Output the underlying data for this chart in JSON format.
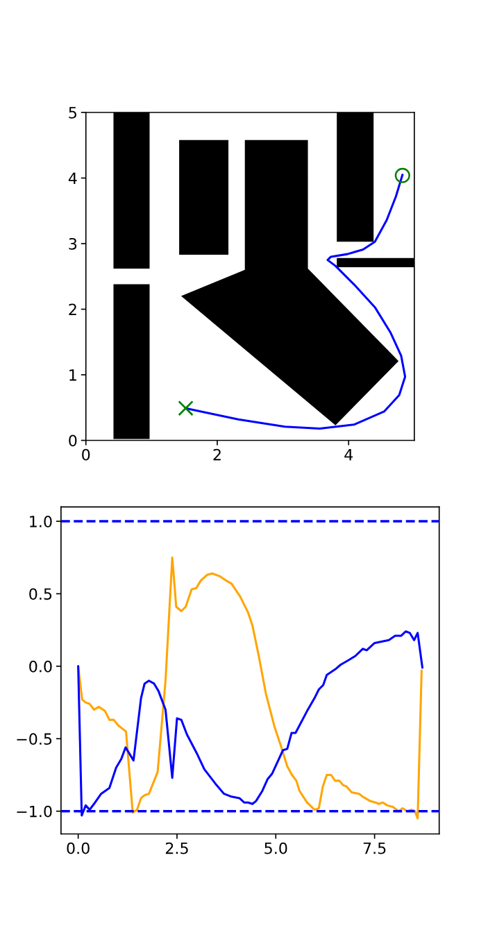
{
  "chart_data": [
    {
      "type": "line",
      "xlim": [
        0,
        5
      ],
      "ylim": [
        0,
        5
      ],
      "xticks": [
        0,
        2,
        4
      ],
      "yticks": [
        0,
        1,
        2,
        3,
        4,
        5
      ],
      "series": [
        {
          "type": "area",
          "color": "#000000",
          "x": [
            0.42,
            0.97,
            0.97,
            0.42,
            null,
            0.42,
            0.97,
            0.97,
            0.42
          ],
          "values": [
            2.62,
            2.62,
            5,
            5,
            null,
            2.38,
            2.38,
            0.02,
            0.02
          ]
        },
        {
          "type": "area",
          "color": "#000000",
          "x": [
            1.42,
            2.17,
            2.17,
            1.42
          ],
          "values": [
            2.83,
            2.83,
            4.58,
            4.58
          ]
        },
        {
          "type": "area",
          "color": "#000000",
          "x": [
            1.45,
            2.42,
            2.42,
            3.38,
            3.38,
            4.76,
            3.8
          ],
          "values": [
            2.2,
            2.6,
            4.58,
            4.58,
            2.62,
            1.21,
            0.23
          ]
        },
        {
          "type": "area",
          "color": "#000000",
          "x": [
            3.82,
            4.38,
            4.38,
            3.82
          ],
          "values": [
            3.03,
            3.03,
            5,
            5
          ]
        },
        {
          "type": "area",
          "color": "#000000",
          "x": [
            3.82,
            5.0,
            5.0,
            3.82
          ],
          "values": [
            2.64,
            2.64,
            2.78,
            2.78
          ]
        },
        {
          "type": "line",
          "color": "#0000ff",
          "x": [
            1.52,
            2.32,
            3.03,
            3.56,
            4.08,
            4.54,
            4.77,
            4.86,
            4.8,
            4.64,
            4.4,
            4.08,
            3.8,
            3.68,
            3.73,
            3.98,
            4.22,
            4.4,
            4.58,
            4.72,
            4.82
          ],
          "values": [
            0.49,
            0.32,
            0.21,
            0.18,
            0.24,
            0.44,
            0.69,
            0.97,
            1.29,
            1.64,
            2.03,
            2.38,
            2.66,
            2.75,
            2.8,
            2.84,
            2.91,
            3.03,
            3.36,
            3.72,
            4.05
          ]
        },
        {
          "type": "scatter",
          "color": "#008000",
          "marker": "cross",
          "x": [
            1.52
          ],
          "values": [
            0.49
          ]
        },
        {
          "type": "scatter",
          "color": "#008000",
          "marker": "circle",
          "x": [
            4.82
          ],
          "values": [
            4.04
          ]
        }
      ]
    },
    {
      "type": "line",
      "xlim": [
        -0.435,
        9.135
      ],
      "ylim": [
        -1.157,
        1.099
      ],
      "xticks": [
        {
          "value": 0,
          "label": "0.0"
        },
        {
          "value": 2.5,
          "label": "2.5"
        },
        {
          "value": 5,
          "label": "5.0"
        },
        {
          "value": 7.5,
          "label": "7.5"
        }
      ],
      "yticks": [
        {
          "value": -1,
          "label": "−1.0"
        },
        {
          "value": -0.5,
          "label": "−0.5"
        },
        {
          "value": 0,
          "label": "0.0"
        },
        {
          "value": 0.5,
          "label": "0.5"
        },
        {
          "value": 1,
          "label": "1.0"
        }
      ],
      "ref_lines": [
        {
          "axis": "y",
          "value": 1,
          "color": "#0000ff",
          "line_style": "dashed"
        },
        {
          "axis": "y",
          "value": -1,
          "color": "#0000ff",
          "line_style": "dashed"
        }
      ],
      "series": [
        {
          "color": "#ffa500",
          "x": [
            0,
            0.1,
            0.19,
            0.29,
            0.4,
            0.52,
            0.68,
            0.79,
            0.9,
            1.02,
            1.21,
            1.38,
            1.49,
            1.59,
            1.68,
            1.79,
            2.01,
            2.21,
            2.38,
            2.48,
            2.61,
            2.72,
            2.87,
            2.99,
            3.1,
            3.26,
            3.39,
            3.59,
            3.75,
            3.88,
            4.1,
            4.3,
            4.41,
            4.57,
            4.75,
            4.97,
            5.13,
            5.29,
            5.41,
            5.52,
            5.6,
            5.79,
            5.98,
            6.09,
            6.19,
            6.29,
            6.4,
            6.5,
            6.61,
            6.7,
            6.79,
            6.92,
            7.11,
            7.2,
            7.39,
            7.52,
            7.61,
            7.71,
            7.82,
            7.96,
            8.11,
            8.21,
            8.32,
            8.43,
            8.52,
            8.59,
            8.69
          ],
          "values": [
            0,
            -0.23,
            -0.25,
            -0.26,
            -0.3,
            -0.28,
            -0.31,
            -0.37,
            -0.37,
            -0.41,
            -0.45,
            -1.01,
            -0.99,
            -0.91,
            -0.89,
            -0.88,
            -0.73,
            -0.1,
            0.75,
            0.41,
            0.38,
            0.41,
            0.53,
            0.54,
            0.59,
            0.63,
            0.64,
            0.62,
            0.59,
            0.57,
            0.48,
            0.37,
            0.28,
            0.07,
            -0.19,
            -0.42,
            -0.55,
            -0.69,
            -0.75,
            -0.79,
            -0.86,
            -0.94,
            -0.99,
            -0.98,
            -0.83,
            -0.75,
            -0.75,
            -0.79,
            -0.79,
            -0.82,
            -0.83,
            -0.87,
            -0.88,
            -0.9,
            -0.93,
            -0.94,
            -0.95,
            -0.94,
            -0.96,
            -0.97,
            -1.0,
            -0.98,
            -1.0,
            -0.99,
            -1.0,
            -1.05,
            -0.03
          ]
        },
        {
          "color": "#0000ff",
          "x": [
            0,
            0.09,
            0.19,
            0.29,
            0.4,
            0.58,
            0.79,
            0.96,
            1.09,
            1.2,
            1.4,
            1.59,
            1.68,
            1.79,
            1.92,
            2.03,
            2.21,
            2.38,
            2.5,
            2.61,
            2.75,
            3.0,
            3.19,
            3.5,
            3.69,
            3.88,
            4.08,
            4.2,
            4.3,
            4.41,
            4.5,
            4.66,
            4.79,
            4.91,
            5.18,
            5.29,
            5.4,
            5.5,
            5.79,
            5.98,
            6.09,
            6.2,
            6.29,
            6.51,
            6.64,
            6.83,
            7.01,
            7.2,
            7.3,
            7.5,
            7.86,
            8.02,
            8.17,
            8.29,
            8.39,
            8.5,
            8.59,
            8.71
          ],
          "values": [
            0,
            -1.03,
            -0.96,
            -0.99,
            -0.95,
            -0.88,
            -0.84,
            -0.7,
            -0.64,
            -0.56,
            -0.65,
            -0.22,
            -0.12,
            -0.1,
            -0.12,
            -0.17,
            -0.3,
            -0.77,
            -0.36,
            -0.37,
            -0.47,
            -0.6,
            -0.71,
            -0.82,
            -0.88,
            -0.9,
            -0.91,
            -0.94,
            -0.94,
            -0.95,
            -0.93,
            -0.86,
            -0.78,
            -0.74,
            -0.58,
            -0.57,
            -0.46,
            -0.46,
            -0.31,
            -0.22,
            -0.16,
            -0.13,
            -0.06,
            -0.02,
            0.01,
            0.04,
            0.07,
            0.12,
            0.11,
            0.16,
            0.18,
            0.21,
            0.21,
            0.24,
            0.23,
            0.18,
            0.23,
            -0.01
          ]
        }
      ]
    }
  ]
}
